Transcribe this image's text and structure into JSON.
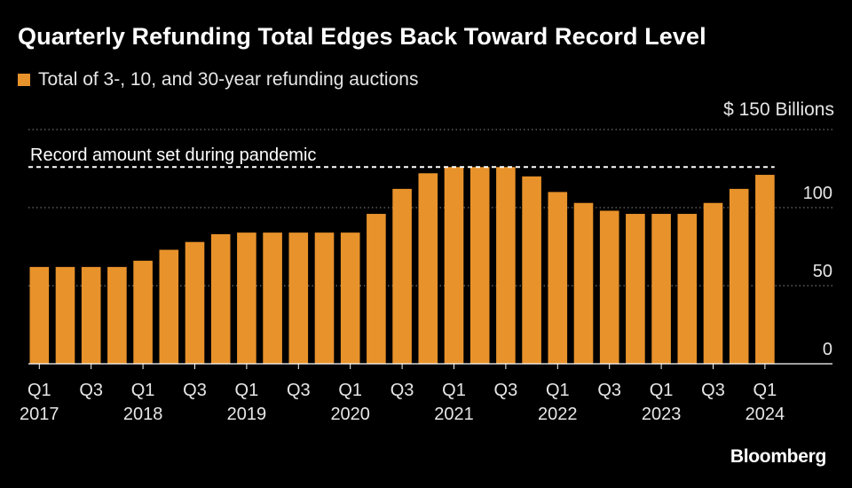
{
  "title": "Quarterly Refunding Total Edges Back Toward Record Level",
  "brand": "Bloomberg",
  "colors": {
    "background": "#000000",
    "bar": "#e8922b",
    "text": "#ffffff",
    "subtle_text": "#e6e6e6",
    "gridline": "#8a8a8a"
  },
  "chart_data": {
    "type": "bar",
    "legend": "Total of 3-, 10, and 30-year refunding auctions",
    "unit_label": "$ 150 Billions",
    "categories": [
      "Q1 2017",
      "Q2 2017",
      "Q3 2017",
      "Q4 2017",
      "Q1 2018",
      "Q2 2018",
      "Q3 2018",
      "Q4 2018",
      "Q1 2019",
      "Q2 2019",
      "Q3 2019",
      "Q4 2019",
      "Q1 2020",
      "Q2 2020",
      "Q3 2020",
      "Q4 2020",
      "Q1 2021",
      "Q2 2021",
      "Q3 2021",
      "Q4 2021",
      "Q1 2022",
      "Q2 2022",
      "Q3 2022",
      "Q4 2022",
      "Q1 2023",
      "Q2 2023",
      "Q3 2023",
      "Q4 2023",
      "Q1 2024"
    ],
    "values": [
      62,
      62,
      62,
      62,
      66,
      73,
      78,
      83,
      84,
      84,
      84,
      84,
      84,
      96,
      112,
      122,
      126,
      126,
      126,
      120,
      110,
      103,
      98,
      96,
      96,
      96,
      103,
      112,
      121
    ],
    "y_ticks": [
      0,
      50,
      100,
      150
    ],
    "y_tick_labels": [
      "0",
      "50",
      "100",
      ""
    ],
    "ylim": [
      0,
      150
    ],
    "gridlines": true,
    "x_tick_labels": [
      {
        "index": 0,
        "quarter": "Q1",
        "year": "2017"
      },
      {
        "index": 2,
        "quarter": "Q3",
        "year": ""
      },
      {
        "index": 4,
        "quarter": "Q1",
        "year": "2018"
      },
      {
        "index": 6,
        "quarter": "Q3",
        "year": ""
      },
      {
        "index": 8,
        "quarter": "Q1",
        "year": "2019"
      },
      {
        "index": 10,
        "quarter": "Q3",
        "year": ""
      },
      {
        "index": 12,
        "quarter": "Q1",
        "year": "2020"
      },
      {
        "index": 14,
        "quarter": "Q3",
        "year": ""
      },
      {
        "index": 16,
        "quarter": "Q1",
        "year": "2021"
      },
      {
        "index": 18,
        "quarter": "Q3",
        "year": ""
      },
      {
        "index": 20,
        "quarter": "Q1",
        "year": "2022"
      },
      {
        "index": 22,
        "quarter": "Q3",
        "year": ""
      },
      {
        "index": 24,
        "quarter": "Q1",
        "year": "2023"
      },
      {
        "index": 26,
        "quarter": "Q3",
        "year": ""
      },
      {
        "index": 28,
        "quarter": "Q1",
        "year": "2024"
      }
    ],
    "annotation": {
      "text": "Record amount set during pandemic",
      "value": 126
    }
  }
}
